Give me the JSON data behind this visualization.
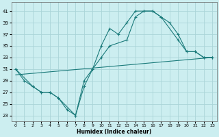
{
  "title": "",
  "xlabel": "Humidex (Indice chaleur)",
  "bg_color": "#cceef0",
  "grid_color": "#aad4d8",
  "line_color": "#1a7a7a",
  "xlim": [
    -0.5,
    23.5
  ],
  "ylim": [
    22,
    42.5
  ],
  "yticks": [
    23,
    25,
    27,
    29,
    31,
    33,
    35,
    37,
    39,
    41
  ],
  "xticks": [
    0,
    1,
    2,
    3,
    4,
    5,
    6,
    7,
    8,
    9,
    10,
    11,
    12,
    13,
    14,
    15,
    16,
    17,
    18,
    19,
    20,
    21,
    22,
    23
  ],
  "line1_x": [
    0,
    1,
    2,
    3,
    4,
    5,
    6,
    7,
    8,
    9,
    10,
    11,
    12,
    13,
    14,
    15,
    16,
    17,
    18,
    19,
    20,
    21,
    22,
    23
  ],
  "line1_y": [
    31,
    29,
    28,
    27,
    27,
    26,
    24,
    23,
    28,
    31,
    35,
    38,
    37,
    39,
    41,
    41,
    41,
    40,
    39,
    37,
    34,
    34,
    33,
    33
  ],
  "line2_x": [
    0,
    2,
    3,
    4,
    5,
    7,
    8,
    9,
    10,
    11,
    13,
    14,
    15,
    16,
    17,
    19,
    20,
    21,
    22,
    23
  ],
  "line2_y": [
    31,
    28,
    27,
    27,
    26,
    23,
    29,
    31,
    33,
    35,
    36,
    40,
    41,
    41,
    40,
    36,
    34,
    34,
    33,
    33
  ],
  "line3_x": [
    0,
    23
  ],
  "line3_y": [
    30,
    33
  ]
}
